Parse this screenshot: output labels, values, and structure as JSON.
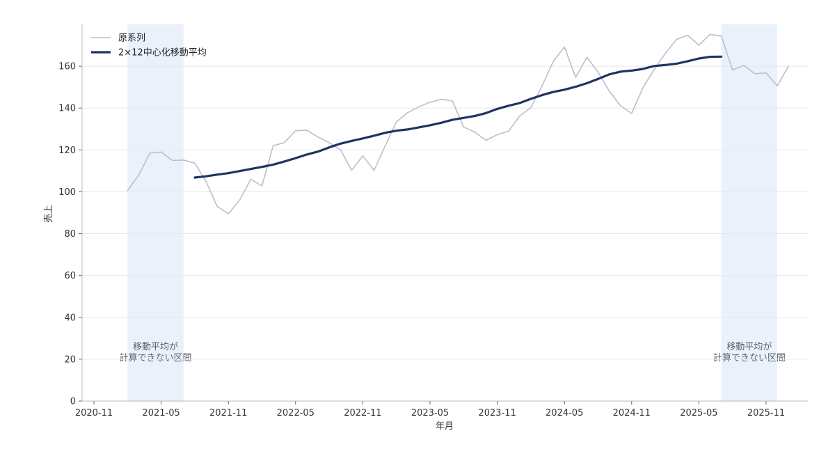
{
  "chart_data": {
    "type": "line",
    "xlabel": "年月",
    "ylabel": "売上",
    "ylim": [
      0,
      180
    ],
    "yticks": [
      0,
      20,
      40,
      60,
      80,
      100,
      120,
      140,
      160
    ],
    "xticks": [
      "2020-11",
      "2021-05",
      "2021-11",
      "2022-05",
      "2022-11",
      "2023-05",
      "2023-11",
      "2024-05",
      "2024-11",
      "2025-05",
      "2025-11"
    ],
    "grid": "horizontal",
    "legend_position": "top-left",
    "colors": {
      "original": "#b8c0cc",
      "moving_average": "#1f3461",
      "shade": "#eaf1fb",
      "grid": "#e8e8e8",
      "axis": "#bbbbbb"
    },
    "shaded_regions": [
      {
        "start": "2021-02",
        "end": "2021-07",
        "label_lines": [
          "移動平均が",
          "計算できない区間"
        ]
      },
      {
        "start": "2025-07",
        "end": "2025-12",
        "label_lines": [
          "移動平均が",
          "計算できない区間"
        ]
      }
    ],
    "series": [
      {
        "name": "原系列",
        "style": "thin",
        "start": "2021-02",
        "values": [
          100.5,
          108,
          118.5,
          119,
          115,
          115.2,
          113.7,
          105,
          93,
          89.5,
          96,
          106,
          102.8,
          122,
          123.5,
          129.2,
          129.4,
          126.2,
          123.4,
          120.2,
          110.3,
          117.2,
          110.2,
          122,
          133.4,
          137.8,
          140.6,
          142.8,
          144.2,
          143.4,
          131,
          128.5,
          124.6,
          127.3,
          128.9,
          136.2,
          140.2,
          150.6,
          162.3,
          169.2,
          154.6,
          164.3,
          157.2,
          148.1,
          141.2,
          137.4,
          149.7,
          158.4,
          166.1,
          172.8,
          174.8,
          170.1,
          175.2,
          174.4,
          158.2,
          160.4,
          156.4,
          156.8,
          150.6,
          160.1
        ]
      },
      {
        "name": "2×12中心化移動平均",
        "style": "thick",
        "start": "2021-08",
        "values": [
          106.8,
          107.4,
          108.2,
          108.9,
          109.9,
          110.9,
          111.9,
          113,
          114.5,
          116.1,
          117.8,
          119.2,
          121.2,
          123,
          124.3,
          125.5,
          126.8,
          128.2,
          129.2,
          129.8,
          130.8,
          131.8,
          133,
          134.4,
          135.3,
          136.2,
          137.6,
          139.6,
          141.1,
          142.4,
          144.4,
          146.2,
          147.7,
          148.8,
          150.2,
          151.9,
          153.9,
          156.1,
          157.4,
          157.9,
          158.7,
          160.1,
          160.6,
          161.2,
          162.4,
          163.7,
          164.5,
          164.6
        ]
      }
    ]
  }
}
